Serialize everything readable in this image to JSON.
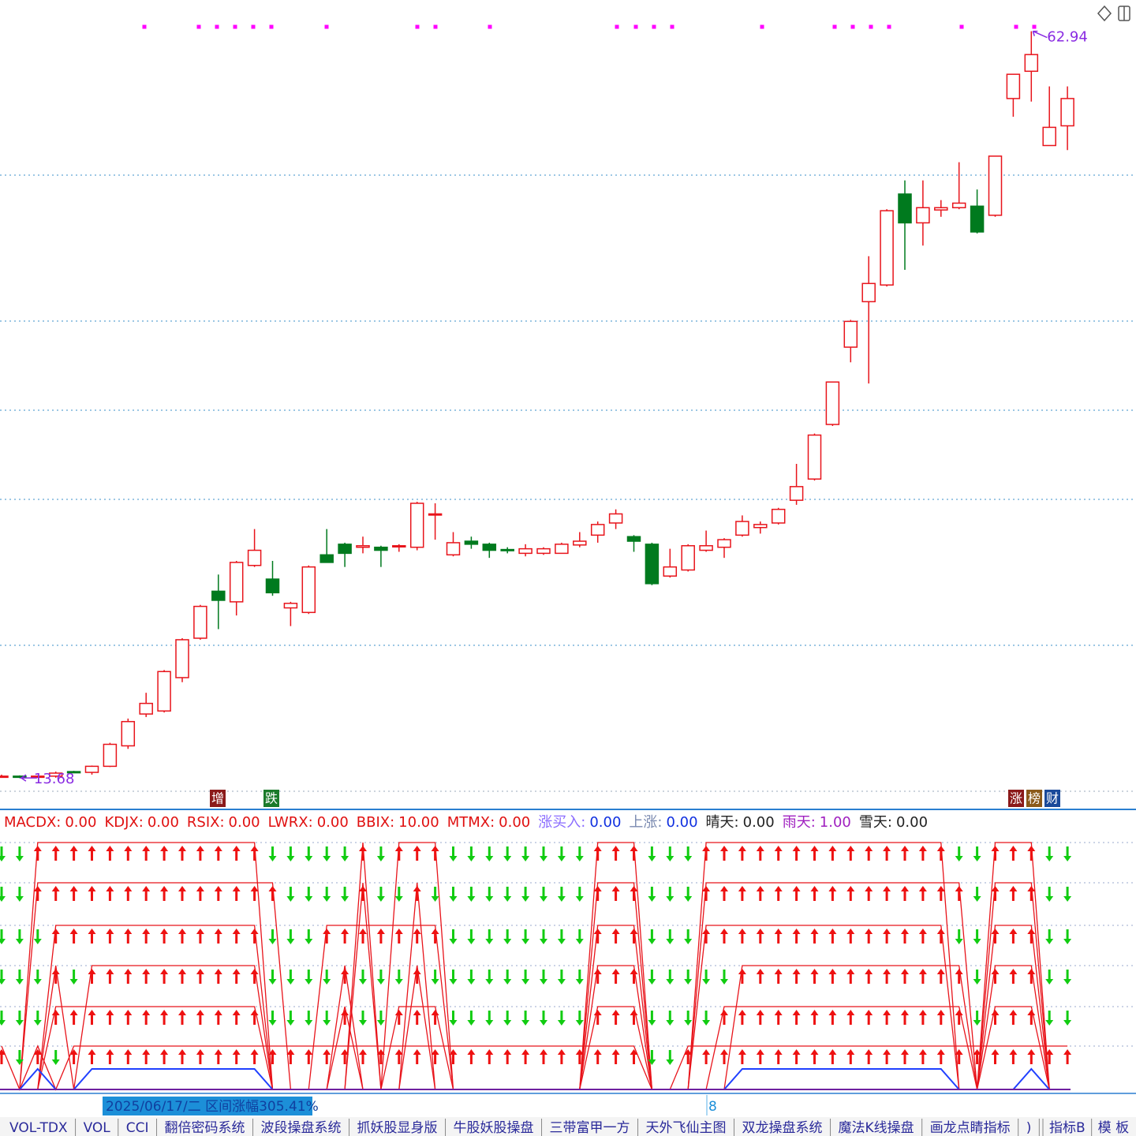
{
  "chart_data": {
    "type": "candlestick",
    "ylim": [
      12.7,
      65.0
    ],
    "up_color": "#e8141b",
    "down_color": "#007a1e",
    "open": [
      13.8,
      13.8,
      13.8,
      13.8,
      14.1,
      14.05,
      14.45,
      15.8,
      17.9,
      18.1,
      20.3,
      22.9,
      26.0,
      25.3,
      27.7,
      26.8,
      24.9,
      24.6,
      28.4,
      29.1,
      28.9,
      28.9,
      29.0,
      28.9,
      31.1,
      28.4,
      29.3,
      29.1,
      28.75,
      28.5,
      28.5,
      28.5,
      29.05,
      29.7,
      30.5,
      29.6,
      29.1,
      27.0,
      27.4,
      28.7,
      28.9,
      29.7,
      30.2,
      30.5,
      32.0,
      33.4,
      37.0,
      42.1,
      45.1,
      46.2,
      52.2,
      50.3,
      51.15,
      51.3,
      51.4,
      50.8,
      58.5,
      60.3,
      55.4,
      56.7
    ],
    "high": [
      13.9,
      13.85,
      13.85,
      14.1,
      14.15,
      14.5,
      16.0,
      17.6,
      19.3,
      20.8,
      22.9,
      25.1,
      27.1,
      28.0,
      30.1,
      28.0,
      25.3,
      27.7,
      30.1,
      29.2,
      29.6,
      29.0,
      29.1,
      31.9,
      31.8,
      29.9,
      29.6,
      29.2,
      28.9,
      29.1,
      28.9,
      29.2,
      29.9,
      30.6,
      31.4,
      29.7,
      29.2,
      28.8,
      29.1,
      30.0,
      29.5,
      31.0,
      30.6,
      31.5,
      34.4,
      36.4,
      39.8,
      43.9,
      48.1,
      51.2,
      53.1,
      53.1,
      51.8,
      54.3,
      52.5,
      54.7,
      60.1,
      62.94,
      59.3,
      59.3
    ],
    "low": [
      13.7,
      13.68,
      13.75,
      13.7,
      14.0,
      13.9,
      14.4,
      15.6,
      17.7,
      18.0,
      20.0,
      22.8,
      23.5,
      24.4,
      27.6,
      25.7,
      23.7,
      24.5,
      27.9,
      27.6,
      28.5,
      27.6,
      28.6,
      28.7,
      29.4,
      28.3,
      28.8,
      28.2,
      28.5,
      28.3,
      28.4,
      28.5,
      28.9,
      29.2,
      30.1,
      28.6,
      26.4,
      26.9,
      27.3,
      28.6,
      28.2,
      29.6,
      29.8,
      30.4,
      31.7,
      33.3,
      36.9,
      41.1,
      39.7,
      46.1,
      47.2,
      48.8,
      50.7,
      51.2,
      49.6,
      50.7,
      57.3,
      58.3,
      55.4,
      55.1
    ],
    "close": [
      13.8,
      13.75,
      13.8,
      14.0,
      14.05,
      14.45,
      15.9,
      17.4,
      18.6,
      20.7,
      22.8,
      25.0,
      25.4,
      27.9,
      28.7,
      25.9,
      25.2,
      27.6,
      27.9,
      28.5,
      29.0,
      28.7,
      29.0,
      31.8,
      31.1,
      29.2,
      29.1,
      28.7,
      28.7,
      28.8,
      28.8,
      29.1,
      29.3,
      30.4,
      31.1,
      29.3,
      26.5,
      27.6,
      29.0,
      29.0,
      29.4,
      30.6,
      30.4,
      31.4,
      32.9,
      36.3,
      39.8,
      43.8,
      46.3,
      51.1,
      50.3,
      51.3,
      51.3,
      51.6,
      49.7,
      54.7,
      60.1,
      61.4,
      56.6,
      58.5
    ],
    "max_label": 62.94,
    "min_label": 13.68,
    "event_tags": [
      "增",
      "跌",
      "涨",
      "榜",
      "财"
    ],
    "indicator_legend": {
      "names": [
        "MACDX:",
        "KDJX:",
        "RSIX:",
        "LWRX:",
        "BBIX:",
        "MTMX:",
        "涨买入:",
        "上涨:",
        "晴天:",
        "雨天:",
        "雪天:"
      ],
      "values": [
        0,
        0,
        0,
        0,
        10,
        0,
        0,
        0,
        0,
        1,
        0
      ],
      "value_labels": [
        "0.00",
        "0.00",
        "0.00",
        "0.00",
        "10.00",
        "0.00",
        "0.00",
        "0.00",
        "0.00",
        "1.00",
        "0.00"
      ],
      "name_colors": [
        "#e01010",
        "#e01010",
        "#e01010",
        "#e01010",
        "#e01010",
        "#e01010",
        "#8a6cff",
        "#7a8ab0",
        "#222222",
        "#a020c0",
        "#222222"
      ],
      "value_colors": [
        "#e01010",
        "#e01010",
        "#e01010",
        "#e01010",
        "#e01010",
        "#e01010",
        "#1030e0",
        "#1030e0",
        "#222222",
        "#a020c0",
        "#222222"
      ]
    },
    "signals": [
      {
        "values": [
          0,
          0,
          1,
          1,
          1,
          1,
          1,
          1,
          1,
          1,
          1,
          1,
          1,
          1,
          1,
          0,
          0,
          0,
          0,
          0,
          1,
          0,
          1,
          1,
          1,
          0,
          0,
          0,
          0,
          0,
          0,
          0,
          0,
          1,
          1,
          1,
          0,
          0,
          0,
          1,
          1,
          1,
          1,
          1,
          1,
          1,
          1,
          1,
          1,
          1,
          1,
          1,
          1,
          0,
          0,
          1,
          1,
          1,
          0,
          0
        ]
      },
      {
        "values": [
          0,
          0,
          1,
          1,
          1,
          1,
          1,
          1,
          1,
          1,
          1,
          1,
          1,
          1,
          1,
          1,
          0,
          0,
          0,
          0,
          1,
          0,
          0,
          1,
          0,
          0,
          0,
          0,
          0,
          0,
          0,
          0,
          0,
          1,
          1,
          1,
          0,
          0,
          0,
          1,
          1,
          1,
          1,
          1,
          1,
          1,
          1,
          1,
          1,
          1,
          1,
          1,
          1,
          1,
          0,
          1,
          1,
          1,
          0,
          0
        ]
      },
      {
        "values": [
          0,
          0,
          0,
          1,
          1,
          1,
          1,
          1,
          1,
          1,
          1,
          1,
          1,
          1,
          1,
          0,
          0,
          0,
          1,
          1,
          1,
          1,
          1,
          1,
          1,
          0,
          0,
          0,
          0,
          0,
          0,
          0,
          0,
          1,
          1,
          1,
          0,
          0,
          0,
          1,
          1,
          1,
          1,
          1,
          1,
          1,
          1,
          1,
          1,
          1,
          1,
          1,
          1,
          0,
          0,
          1,
          1,
          1,
          0,
          0
        ]
      },
      {
        "values": [
          0,
          0,
          0,
          1,
          0,
          1,
          1,
          1,
          1,
          1,
          1,
          1,
          1,
          1,
          1,
          0,
          0,
          0,
          0,
          1,
          0,
          0,
          0,
          1,
          0,
          0,
          0,
          0,
          0,
          0,
          0,
          0,
          0,
          1,
          1,
          1,
          0,
          0,
          0,
          0,
          0,
          1,
          1,
          1,
          1,
          1,
          1,
          1,
          1,
          1,
          1,
          1,
          1,
          1,
          0,
          1,
          1,
          1,
          0,
          0
        ]
      },
      {
        "values": [
          0,
          0,
          0,
          1,
          1,
          1,
          1,
          1,
          1,
          1,
          1,
          1,
          1,
          1,
          1,
          0,
          0,
          0,
          0,
          1,
          0,
          0,
          1,
          1,
          1,
          0,
          0,
          0,
          0,
          0,
          0,
          0,
          0,
          1,
          1,
          1,
          0,
          0,
          0,
          0,
          1,
          1,
          1,
          1,
          1,
          1,
          1,
          1,
          1,
          1,
          1,
          1,
          1,
          1,
          0,
          1,
          1,
          1,
          0,
          0
        ]
      },
      {
        "values": [
          1,
          0,
          1,
          0,
          1,
          1,
          1,
          1,
          1,
          1,
          1,
          1,
          1,
          1,
          1,
          1,
          1,
          1,
          1,
          1,
          1,
          1,
          1,
          1,
          1,
          1,
          1,
          1,
          1,
          1,
          1,
          1,
          1,
          1,
          1,
          1,
          0,
          0,
          1,
          1,
          1,
          1,
          1,
          1,
          1,
          1,
          1,
          1,
          1,
          1,
          1,
          1,
          1,
          1,
          1,
          1,
          1,
          1,
          1,
          1
        ]
      }
    ],
    "blue_line": [
      0,
      0,
      1,
      0,
      0,
      1,
      1,
      1,
      1,
      1,
      1,
      1,
      1,
      1,
      1,
      0,
      0,
      0,
      0,
      0,
      0,
      0,
      0,
      0,
      0,
      0,
      0,
      0,
      0,
      0,
      0,
      0,
      0,
      0,
      0,
      0,
      0,
      0,
      0,
      0,
      0,
      1,
      1,
      1,
      1,
      1,
      1,
      1,
      1,
      1,
      1,
      1,
      1,
      0,
      0,
      0,
      0,
      1,
      0,
      0
    ],
    "status": {
      "range": "2025/06/17/二  区间涨幅305.41%",
      "cursor": "8"
    },
    "tabs": [
      "VOL-TDX",
      "VOL",
      "CCI",
      "翻倍密码系统",
      "波段操盘系统",
      "抓妖股显身版",
      "牛股妖股操盘",
      "三带富甲一方",
      "天外飞仙主图",
      "双龙操盘系统",
      "魔法K线操盘",
      "画龙点睛指标",
      ")"
    ],
    "right_tabs": [
      "指标B",
      "模 板"
    ]
  }
}
